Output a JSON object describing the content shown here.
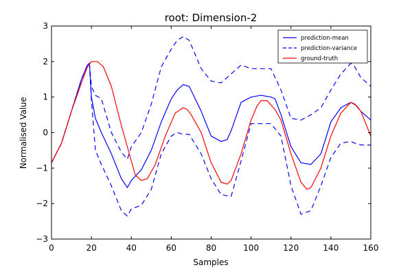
{
  "chart_data": {
    "type": "line",
    "title": "root: Dimension-2",
    "xlabel": "Samples",
    "ylabel": "Normalised Value",
    "xlim": [
      0,
      160
    ],
    "ylim": [
      -3,
      3
    ],
    "xticks": [
      0,
      20,
      40,
      60,
      80,
      100,
      120,
      140,
      160
    ],
    "yticks": [
      -3,
      -2,
      -1,
      0,
      1,
      2,
      3
    ],
    "grid": false,
    "legend_position": "top-right",
    "series": [
      {
        "name": "prediction-mean",
        "color": "#0000ff",
        "dash": "solid",
        "x": [
          0,
          5,
          10,
          15,
          18,
          19,
          20,
          22,
          25,
          30,
          35,
          38,
          40,
          45,
          50,
          55,
          60,
          63,
          66,
          69,
          75,
          80,
          85,
          88,
          90,
          95,
          100,
          105,
          110,
          112,
          115,
          120,
          125,
          130,
          135,
          140,
          145,
          150,
          152,
          155,
          160
        ],
        "y": [
          -0.85,
          -0.3,
          0.6,
          1.5,
          1.9,
          1.95,
          1.0,
          0.4,
          0.0,
          -0.6,
          -1.3,
          -1.55,
          -1.35,
          -1.05,
          -0.5,
          0.3,
          0.95,
          1.2,
          1.35,
          1.3,
          0.6,
          -0.1,
          -0.25,
          -0.2,
          0.05,
          0.85,
          1.0,
          1.05,
          1.0,
          0.95,
          0.5,
          -0.4,
          -0.85,
          -0.9,
          -0.6,
          0.3,
          0.7,
          0.85,
          0.8,
          0.6,
          0.35
        ]
      },
      {
        "name": "prediction-variance",
        "color": "#0000ff",
        "dash": "dashed",
        "upper": {
          "x": [
            0,
            5,
            10,
            15,
            18,
            19,
            20,
            22,
            25,
            30,
            35,
            38,
            40,
            45,
            50,
            55,
            60,
            63,
            66,
            69,
            75,
            80,
            85,
            90,
            95,
            100,
            105,
            110,
            115,
            120,
            125,
            130,
            135,
            140,
            145,
            150,
            152,
            155,
            160
          ],
          "y": [
            -0.85,
            -0.3,
            0.6,
            1.5,
            1.9,
            1.95,
            1.3,
            1.05,
            0.95,
            0.0,
            -0.55,
            -0.75,
            -0.4,
            0.0,
            0.8,
            1.85,
            2.35,
            2.6,
            2.7,
            2.6,
            1.8,
            1.45,
            1.4,
            1.65,
            1.9,
            1.8,
            1.8,
            1.8,
            1.2,
            0.4,
            0.35,
            0.5,
            0.7,
            1.2,
            1.65,
            1.95,
            1.85,
            1.55,
            1.3
          ]
        },
        "lower": {
          "x": [
            0,
            5,
            10,
            15,
            18,
            19,
            20,
            22,
            25,
            30,
            35,
            38,
            40,
            45,
            50,
            55,
            60,
            63,
            66,
            69,
            75,
            80,
            85,
            90,
            95,
            100,
            105,
            110,
            115,
            120,
            125,
            130,
            135,
            140,
            145,
            150,
            152,
            155,
            160
          ],
          "y": [
            -0.85,
            -0.3,
            0.6,
            1.5,
            1.9,
            1.95,
            0.9,
            -0.5,
            -0.9,
            -1.5,
            -2.2,
            -2.35,
            -2.15,
            -2.05,
            -1.6,
            -0.6,
            -0.1,
            0.0,
            -0.05,
            -0.05,
            -0.6,
            -1.3,
            -1.75,
            -1.8,
            -0.8,
            0.25,
            0.25,
            0.25,
            -0.1,
            -1.5,
            -2.3,
            -2.2,
            -1.5,
            -0.7,
            -0.3,
            -0.25,
            -0.3,
            -0.35,
            -0.35
          ]
        }
      },
      {
        "name": "ground-truth",
        "color": "#ff0000",
        "dash": "solid",
        "x": [
          0,
          5,
          10,
          15,
          18,
          20,
          23,
          26,
          30,
          35,
          38,
          42,
          45,
          48,
          52,
          57,
          62,
          66,
          68,
          70,
          75,
          80,
          85,
          88,
          90,
          95,
          100,
          103,
          105,
          108,
          112,
          115,
          120,
          125,
          128,
          130,
          135,
          140,
          145,
          150,
          153,
          155,
          160
        ],
        "y": [
          -0.85,
          -0.3,
          0.6,
          1.4,
          1.85,
          2.0,
          2.0,
          1.85,
          1.3,
          0.2,
          -0.4,
          -1.2,
          -1.35,
          -1.3,
          -0.9,
          -0.1,
          0.55,
          0.7,
          0.65,
          0.5,
          0.0,
          -0.85,
          -1.4,
          -1.45,
          -1.35,
          -0.6,
          0.35,
          0.75,
          0.9,
          0.9,
          0.65,
          0.35,
          -0.6,
          -1.4,
          -1.6,
          -1.55,
          -1.0,
          -0.1,
          0.55,
          0.85,
          0.75,
          0.6,
          -0.1
        ]
      }
    ]
  }
}
